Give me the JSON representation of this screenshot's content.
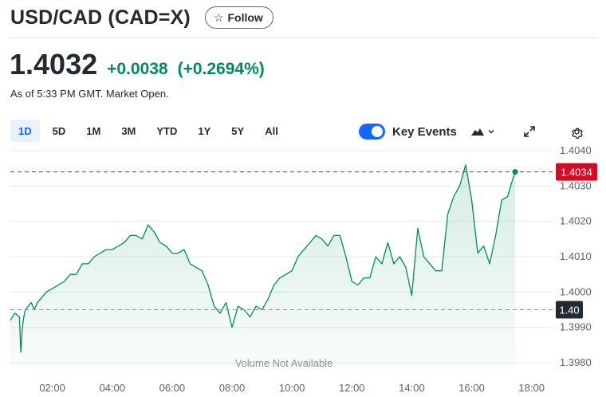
{
  "header": {
    "title": "USD/CAD (CAD=X)",
    "follow_label": "Follow"
  },
  "quote": {
    "price": "1.4032",
    "change": "+0.0038",
    "change_pct": "(+0.2694%)",
    "as_of": "As of 5:33 PM GMT. Market Open."
  },
  "ranges": [
    {
      "label": "1D",
      "active": true
    },
    {
      "label": "5D",
      "active": false
    },
    {
      "label": "1M",
      "active": false
    },
    {
      "label": "3M",
      "active": false
    },
    {
      "label": "YTD",
      "active": false
    },
    {
      "label": "1Y",
      "active": false
    },
    {
      "label": "5Y",
      "active": false
    },
    {
      "label": "All",
      "active": false
    }
  ],
  "toolbar": {
    "key_events_label": "Key Events",
    "key_events_on": true,
    "icons": [
      "mountain-chart-icon",
      "chevron-down-icon",
      "expand-icon",
      "gear-icon"
    ]
  },
  "colors": {
    "accent": "#0f69ff",
    "positive": "#008a5e",
    "current_marker": "#d60a22",
    "prev_close_marker": "#232a31"
  },
  "chart_data": {
    "type": "area",
    "x_ticks": [
      "02:00",
      "04:00",
      "06:00",
      "08:00",
      "10:00",
      "12:00",
      "14:00",
      "16:00",
      "18:00"
    ],
    "y_ticks": [
      "1.4040",
      "1.4030",
      "1.4020",
      "1.4010",
      "1.4000",
      "1.3990",
      "1.3980"
    ],
    "ylim": [
      1.3978,
      1.4043
    ],
    "xlim_hours": [
      0.6,
      18.7
    ],
    "grid": true,
    "current_label": "1.4034",
    "prev_close_label": "1.40",
    "current_value": 1.4034,
    "prev_close_value": 1.3995,
    "watermark": "Volume Not Available",
    "series": [
      {
        "x": [
          0.6,
          0.75,
          0.9,
          0.95,
          1.0,
          1.05,
          1.1,
          1.2,
          1.3,
          1.4,
          1.5,
          1.6,
          1.8,
          2.0,
          2.2,
          2.4,
          2.6,
          2.8,
          3.0,
          3.2,
          3.4,
          3.6,
          3.8,
          4.0,
          4.2,
          4.4,
          4.6,
          4.8,
          5.0,
          5.2,
          5.4,
          5.6,
          5.8,
          6.0,
          6.2,
          6.4,
          6.6,
          6.8,
          7.0,
          7.2,
          7.4,
          7.6,
          7.8,
          8.0,
          8.2,
          8.4,
          8.6,
          8.8,
          9.0,
          9.2,
          9.4,
          9.6,
          9.8,
          10.0,
          10.2,
          10.4,
          10.6,
          10.8,
          11.0,
          11.2,
          11.4,
          11.6,
          11.8,
          12.0,
          12.2,
          12.4,
          12.6,
          12.8,
          13.0,
          13.2,
          13.4,
          13.6,
          13.8,
          14.0,
          14.2,
          14.4,
          14.6,
          14.8,
          15.0,
          15.2,
          15.4,
          15.6,
          15.8,
          16.0,
          16.2,
          16.4,
          16.6,
          16.8,
          17.0,
          17.2,
          17.3,
          17.45
        ],
        "y": [
          1.3992,
          1.3994,
          1.3993,
          1.3983,
          1.399,
          1.3993,
          1.3995,
          1.3996,
          1.3997,
          1.3995,
          1.3997,
          1.3998,
          1.4,
          1.4001,
          1.4002,
          1.4003,
          1.4005,
          1.4005,
          1.4008,
          1.4008,
          1.401,
          1.4011,
          1.4012,
          1.4012,
          1.4013,
          1.4014,
          1.4016,
          1.4016,
          1.4015,
          1.4019,
          1.4017,
          1.4014,
          1.4013,
          1.4011,
          1.4011,
          1.4012,
          1.4008,
          1.4007,
          1.4006,
          1.4002,
          1.3996,
          1.3994,
          1.3997,
          1.399,
          1.3996,
          1.3995,
          1.3993,
          1.3996,
          1.3995,
          1.3998,
          1.4002,
          1.4004,
          1.4005,
          1.4006,
          1.401,
          1.4012,
          1.4014,
          1.4016,
          1.4015,
          1.4013,
          1.4016,
          1.4016,
          1.401,
          1.4003,
          1.4002,
          1.4004,
          1.4004,
          1.401,
          1.4008,
          1.4014,
          1.4008,
          1.401,
          1.4007,
          1.3999,
          1.4018,
          1.401,
          1.4008,
          1.4006,
          1.4006,
          1.4022,
          1.4027,
          1.403,
          1.4036,
          1.4026,
          1.4011,
          1.4013,
          1.4008,
          1.4016,
          1.4026,
          1.4027,
          1.403,
          1.4034
        ]
      }
    ]
  }
}
